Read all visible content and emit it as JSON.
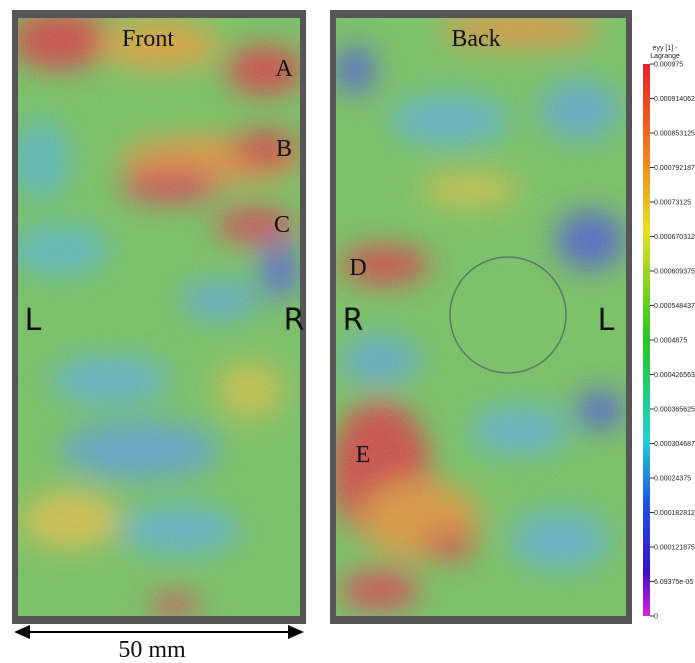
{
  "panels": [
    {
      "title": "Front",
      "labels": [
        "A",
        "B",
        "C",
        "L",
        "R"
      ]
    },
    {
      "title": "Back",
      "labels": [
        "D",
        "R",
        "L",
        "E"
      ]
    }
  ],
  "colorbar": {
    "title": [
      "eyy [1] -",
      "Lagrange"
    ],
    "ticks": [
      "0.000975",
      "0.000914062",
      "0.000853125",
      "0.000792187",
      "0.00073125",
      "0.000670312",
      "0.000609375",
      "0.000548437",
      "0.0004875",
      "0.000426563",
      "0.000365625",
      "0.000304687",
      "0.00024375",
      "0.000182812",
      "0.000121875",
      "6.09375e-05",
      "0"
    ]
  },
  "scale": {
    "label": "50 mm"
  }
}
